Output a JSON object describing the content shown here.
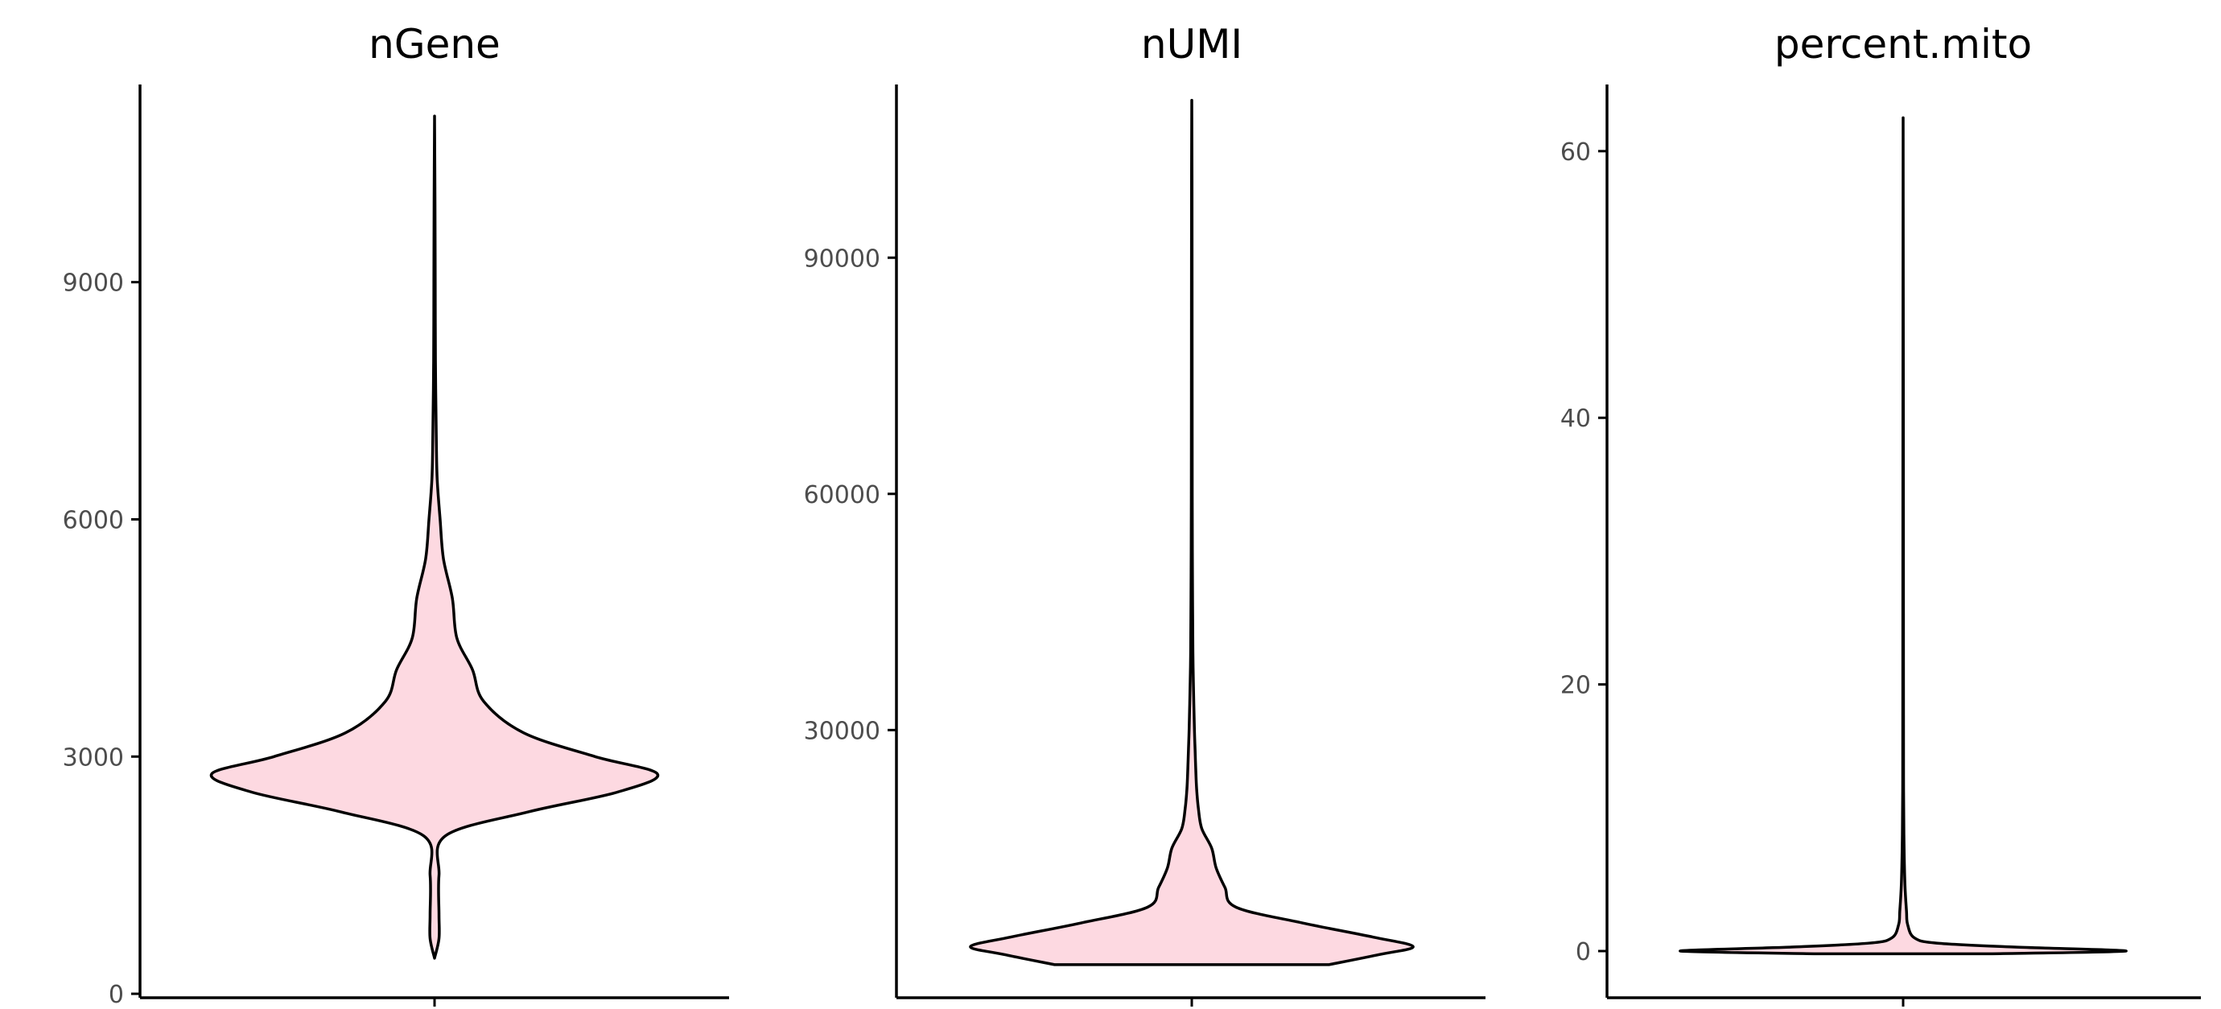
{
  "chart_data": [
    {
      "type": "violin",
      "title": "nGene",
      "xlabel": "",
      "ylabel": "",
      "ylim": [
        -50,
        11500
      ],
      "yticks": [
        0,
        3000,
        6000,
        9000
      ],
      "yticklabels": [
        "0",
        "3000",
        "6000",
        "9000"
      ],
      "fill": "#fdd9e1",
      "density_profile": [
        [
          450,
          0.0
        ],
        [
          700,
          0.02
        ],
        [
          1000,
          0.02
        ],
        [
          1500,
          0.02
        ],
        [
          2000,
          0.05
        ],
        [
          2300,
          0.42
        ],
        [
          2550,
          0.82
        ],
        [
          2780,
          1.0
        ],
        [
          3000,
          0.72
        ],
        [
          3300,
          0.4
        ],
        [
          3700,
          0.22
        ],
        [
          4100,
          0.17
        ],
        [
          4500,
          0.1
        ],
        [
          5000,
          0.08
        ],
        [
          5500,
          0.04
        ],
        [
          6000,
          0.025
        ],
        [
          6500,
          0.012
        ],
        [
          7000,
          0.008
        ],
        [
          8000,
          0.004
        ],
        [
          9000,
          0.003
        ],
        [
          10000,
          0.002
        ],
        [
          11100,
          0.0
        ]
      ]
    },
    {
      "type": "violin",
      "title": "nUMI",
      "xlabel": "",
      "ylabel": "",
      "ylim": [
        -4000,
        112000
      ],
      "yticks": [
        30000,
        60000,
        90000
      ],
      "yticklabels": [
        "30000",
        "60000",
        "90000"
      ],
      "fill": "#fdd9e1",
      "density_profile": [
        [
          200,
          0.62
        ],
        [
          1500,
          0.85
        ],
        [
          2500,
          1.0
        ],
        [
          3700,
          0.82
        ],
        [
          5500,
          0.5
        ],
        [
          7500,
          0.2
        ],
        [
          10000,
          0.15
        ],
        [
          12500,
          0.11
        ],
        [
          15000,
          0.09
        ],
        [
          17500,
          0.045
        ],
        [
          20000,
          0.03
        ],
        [
          22500,
          0.022
        ],
        [
          25000,
          0.018
        ],
        [
          27500,
          0.015
        ],
        [
          30000,
          0.012
        ],
        [
          35000,
          0.008
        ],
        [
          40000,
          0.005
        ],
        [
          50000,
          0.003
        ],
        [
          60000,
          0.002
        ],
        [
          80000,
          0.0015
        ],
        [
          100000,
          0.001
        ],
        [
          110000,
          0.0
        ]
      ]
    },
    {
      "type": "violin",
      "title": "percent.mito",
      "xlabel": "",
      "ylabel": "",
      "ylim": [
        -3.5,
        65
      ],
      "yticks": [
        0,
        20,
        40,
        60
      ],
      "yticklabels": [
        "0",
        "20",
        "40",
        "60"
      ],
      "fill": "#fdd9e1",
      "density_profile": [
        [
          -0.2,
          0.4
        ],
        [
          0.0,
          1.0
        ],
        [
          0.3,
          0.5
        ],
        [
          0.6,
          0.15
        ],
        [
          1.0,
          0.05
        ],
        [
          2.0,
          0.02
        ],
        [
          3.0,
          0.015
        ],
        [
          5.0,
          0.008
        ],
        [
          8.0,
          0.004
        ],
        [
          12.0,
          0.002
        ],
        [
          20.0,
          0.0015
        ],
        [
          40.0,
          0.001
        ],
        [
          62.5,
          0.0
        ]
      ]
    }
  ]
}
